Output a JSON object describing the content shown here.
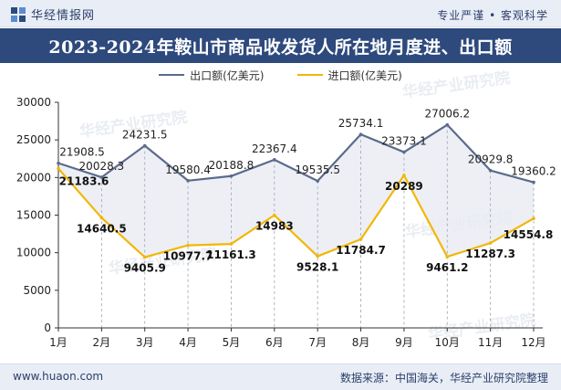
{
  "header": {
    "brand": "华经情报网",
    "slogan": "专业严谨 • 客观科学"
  },
  "title": "2023-2024年鞍山市商品收发货人所在地月度进、出口额",
  "footer": {
    "url": "www.huaon.com",
    "source": "数据来源：中国海关，华经产业研究院整理"
  },
  "watermark": "华经产业研究院",
  "watermark_url": "www.huaon.com",
  "colors": {
    "export": "#5b6b8c",
    "import": "#f2b705",
    "band": "#e8ebf2",
    "header_bg": "#2e4a7d"
  },
  "chart_data": {
    "type": "line",
    "categories": [
      "1月",
      "2月",
      "3月",
      "4月",
      "5月",
      "6月",
      "7月",
      "8月",
      "9月",
      "10月",
      "11月",
      "12月"
    ],
    "series": [
      {
        "name": "出口额(亿美元)",
        "values": [
          21908.5,
          20028.3,
          24231.5,
          19580.4,
          20188.8,
          22367.4,
          19535.5,
          25734.1,
          23373.1,
          27006.2,
          20929.8,
          19360.2
        ],
        "labels": [
          "21908.5",
          "20028.3",
          "24231.5",
          "19580.4",
          "20188.8",
          "22367.4",
          "19535.5",
          "25734.1",
          "23373.1",
          "27006.2",
          "20929.8",
          "19360.2"
        ]
      },
      {
        "name": "进口额(亿美元)",
        "values": [
          21183.6,
          14640.5,
          9405.9,
          10977.7,
          11161.3,
          14983,
          9528.1,
          11784.7,
          20289,
          9461.2,
          11287.3,
          14554.8
        ],
        "labels": [
          "21183.6",
          "14640.5",
          "9405.9",
          "10977.7",
          "11161.3",
          "14983",
          "9528.1",
          "11784.7",
          "20289",
          "9461.2",
          "11287.3",
          "14554.8"
        ]
      }
    ],
    "ylim": [
      0,
      30000
    ],
    "yticks": [
      "0",
      "5000",
      "10000",
      "15000",
      "20000",
      "25000",
      "30000"
    ],
    "grid": false,
    "legend_position": "top-center"
  }
}
